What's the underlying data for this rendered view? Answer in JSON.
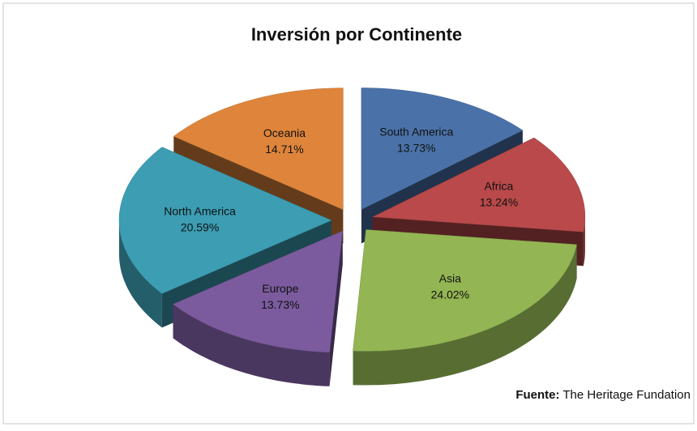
{
  "chart_data": {
    "type": "pie3d",
    "title": "Inversión por Continente",
    "categories": [
      "South America",
      "Africa",
      "Asia",
      "Europe",
      "North America",
      "Oceania"
    ],
    "values": [
      13.73,
      13.24,
      24.02,
      13.73,
      20.59,
      14.71
    ],
    "value_labels": [
      "13.73%",
      "13.24%",
      "24.02%",
      "13.73%",
      "20.59%",
      "14.71%"
    ],
    "colors": [
      "#4a72a8",
      "#b9494a",
      "#93b553",
      "#7b5b9e",
      "#3c9db3",
      "#de853b"
    ],
    "source_label": "Fuente:",
    "source": "The Heritage Fundation"
  }
}
